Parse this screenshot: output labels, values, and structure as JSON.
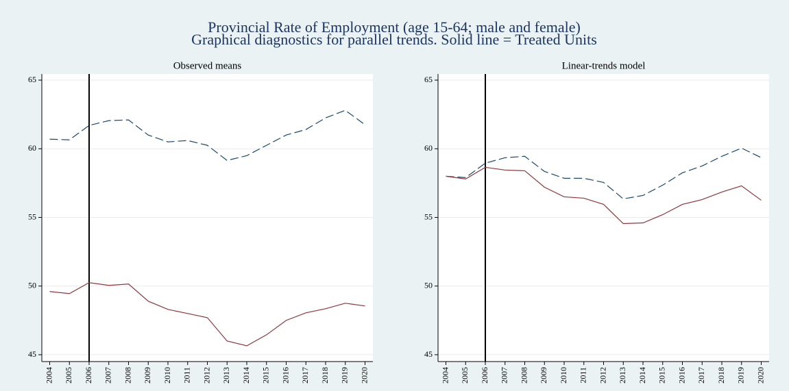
{
  "header": {
    "title": "Provincial  Rate of Employment (age 15-64; male and female)",
    "subtitle": "Graphical diagnostics for parallel trends. Solid line = Treated Units"
  },
  "chart_data": [
    {
      "type": "line",
      "title": "Observed means",
      "x": [
        2004,
        2005,
        2006,
        2007,
        2008,
        2009,
        2010,
        2011,
        2012,
        2013,
        2014,
        2015,
        2016,
        2017,
        2018,
        2019,
        2020
      ],
      "series": [
        {
          "color": "#1a476f",
          "dashed": true,
          "values": [
            60.7,
            60.65,
            61.7,
            62.05,
            62.1,
            61.0,
            60.5,
            60.6,
            60.25,
            59.15,
            59.5,
            60.25,
            61.0,
            61.4,
            62.25,
            62.8,
            61.75
          ]
        },
        {
          "color": "#90353b",
          "dashed": false,
          "values": [
            49.6,
            49.45,
            50.25,
            50.05,
            50.15,
            48.9,
            48.3,
            48.0,
            47.7,
            46.0,
            45.65,
            46.45,
            47.5,
            48.05,
            48.35,
            48.75,
            48.55
          ]
        }
      ],
      "xlim": [
        2003.6,
        2020.4
      ],
      "xticks": [
        2004,
        2005,
        2006,
        2007,
        2008,
        2009,
        2010,
        2011,
        2012,
        2013,
        2014,
        2015,
        2016,
        2017,
        2018,
        2019,
        2020
      ],
      "ylim": [
        45,
        65
      ],
      "yticks": [
        45,
        50,
        55,
        60,
        65
      ],
      "grid": true,
      "xline": 2006
    },
    {
      "type": "line",
      "title": "Linear-trends model",
      "x": [
        2004,
        2005,
        2006,
        2007,
        2008,
        2009,
        2010,
        2011,
        2012,
        2013,
        2014,
        2015,
        2016,
        2017,
        2018,
        2019,
        2020
      ],
      "series": [
        {
          "color": "#1a476f",
          "dashed": true,
          "values": [
            58.0,
            57.9,
            58.95,
            59.35,
            59.45,
            58.35,
            57.85,
            57.85,
            57.55,
            56.35,
            56.6,
            57.35,
            58.25,
            58.75,
            59.45,
            60.05,
            59.35
          ]
        },
        {
          "color": "#90353b",
          "dashed": false,
          "values": [
            58.0,
            57.8,
            58.65,
            58.45,
            58.4,
            57.2,
            56.5,
            56.4,
            55.95,
            54.55,
            54.6,
            55.2,
            55.95,
            56.3,
            56.85,
            57.3,
            56.25
          ]
        }
      ],
      "xlim": [
        2003.6,
        2020.4
      ],
      "xticks": [
        2004,
        2005,
        2006,
        2007,
        2008,
        2009,
        2010,
        2011,
        2012,
        2013,
        2014,
        2015,
        2016,
        2017,
        2018,
        2019,
        2020
      ],
      "ylim": [
        45,
        65
      ],
      "yticks": [
        45,
        50,
        55,
        60,
        65
      ],
      "grid": true,
      "xline": 2006
    }
  ]
}
